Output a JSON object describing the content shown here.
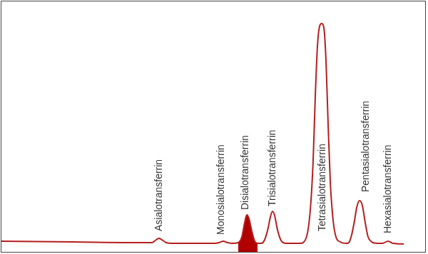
{
  "chart_data": {
    "type": "line",
    "x": [
      0,
      100,
      200,
      212,
      218,
      222,
      226,
      232,
      240,
      300,
      306,
      312,
      318,
      325,
      333,
      338,
      342,
      345,
      348,
      352,
      356,
      360,
      365,
      370,
      375,
      378,
      381,
      384,
      388,
      393,
      400,
      410,
      420,
      428,
      434,
      438,
      441,
      444,
      447,
      450,
      453,
      456,
      459,
      462,
      466,
      470,
      476,
      485,
      488,
      492,
      496,
      499,
      503,
      507,
      511,
      515,
      520,
      528,
      535,
      543,
      550,
      565
    ],
    "series": [
      {
        "color": "#b41e1e",
        "values": [
          16,
          15,
          14,
          14,
          18,
          20,
          18,
          14,
          13,
          13,
          14,
          16,
          14,
          13,
          14,
          22,
          42,
          53,
          48,
          30,
          16,
          13,
          13,
          18,
          35,
          50,
          58,
          52,
          32,
          17,
          13,
          13,
          13,
          20,
          60,
          130,
          220,
          290,
          318,
          322,
          316,
          270,
          180,
          100,
          45,
          22,
          15,
          13,
          14,
          25,
          45,
          63,
          73,
          66,
          42,
          22,
          15,
          13,
          13,
          16,
          13,
          12
        ]
      },
      {
        "type": "area",
        "color": "#b00000",
        "values": [
          null,
          null,
          null,
          null,
          null,
          null,
          null,
          null,
          null,
          null,
          null,
          null,
          null,
          null,
          14,
          22,
          42,
          53,
          48,
          30,
          16,
          13,
          null,
          null,
          null,
          null,
          null,
          null,
          null,
          null,
          null,
          null,
          null,
          null,
          null,
          null,
          null,
          null,
          null,
          null,
          null,
          null,
          null,
          null,
          null,
          null,
          null,
          null,
          null,
          null,
          null,
          null,
          null,
          null,
          null,
          null,
          null,
          null,
          null,
          null,
          null,
          null
        ]
      }
    ],
    "annotations": [
      {
        "text": "Asialotransferrin",
        "x": 222,
        "y": 30
      },
      {
        "text": "Monosialotransferrin",
        "x": 309,
        "y": 25
      },
      {
        "text": "Disialotransferrin",
        "x": 343,
        "y": 60
      },
      {
        "text": "Trisialotransferrin",
        "x": 381,
        "y": 65
      },
      {
        "text": "Tetrasialotransferrin",
        "x": 451,
        "y": 30
      },
      {
        "text": "Pentasialotransferrin",
        "x": 512,
        "y": 85
      },
      {
        "text": "Hexasialotransferrin",
        "x": 543,
        "y": 27
      }
    ],
    "xlim": [
      0,
      596
    ],
    "ylim": [
      0,
      354
    ],
    "grid": false,
    "tick_labels": false
  }
}
